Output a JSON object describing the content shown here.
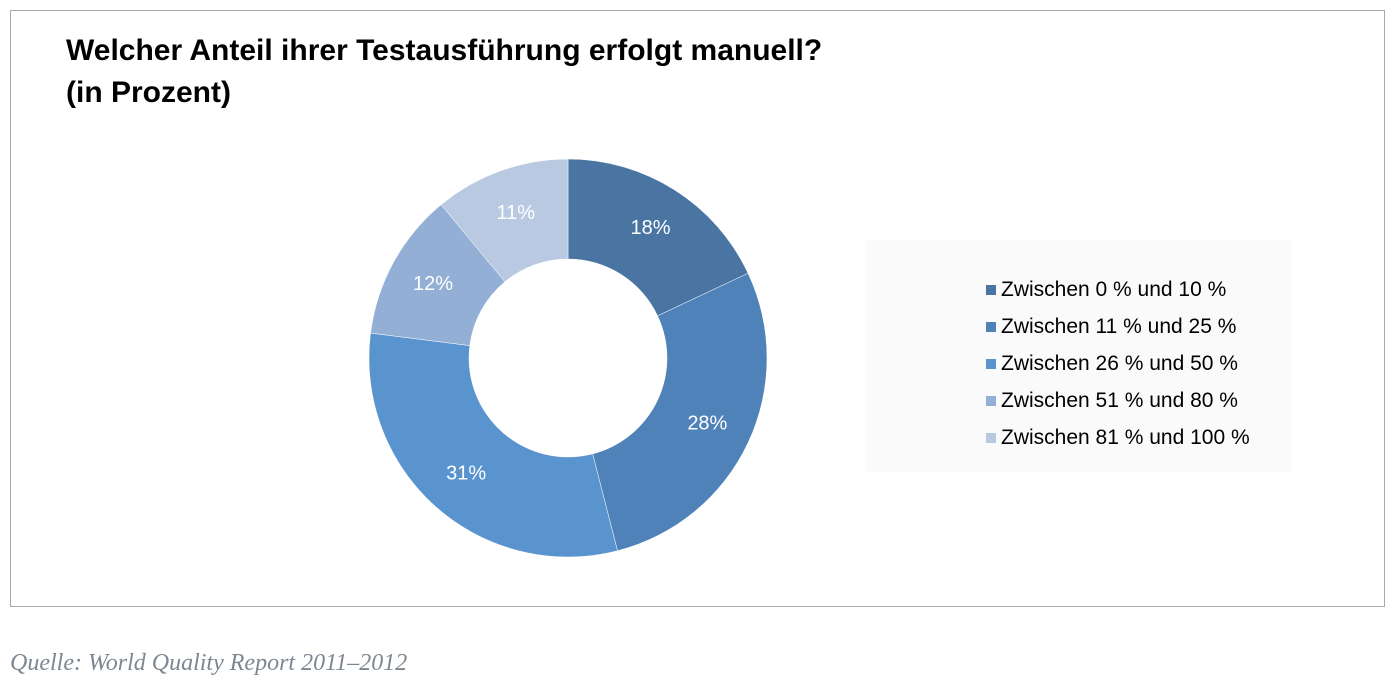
{
  "chart_data": {
    "type": "pie",
    "donut": true,
    "title": "Welcher Anteil ihrer Testausführung erfolgt manuell?",
    "subtitle": "(in Prozent)",
    "categories": [
      "Zwischen 0 % und 10 %",
      "Zwischen 11 % und 25 %",
      "Zwischen 26 % und 50 %",
      "Zwischen 51 % und 80 %",
      "Zwischen 81 % und 100 %"
    ],
    "values": [
      18,
      28,
      31,
      12,
      11
    ],
    "data_labels": [
      "18%",
      "28%",
      "31%",
      "12%",
      "11%"
    ],
    "colors": [
      "#4a74a2",
      "#4f82b8",
      "#5a94cf",
      "#93afd6",
      "#b9c9e2"
    ],
    "legend_position": "right"
  },
  "source": "Quelle: World Quality Report 2011–2012"
}
